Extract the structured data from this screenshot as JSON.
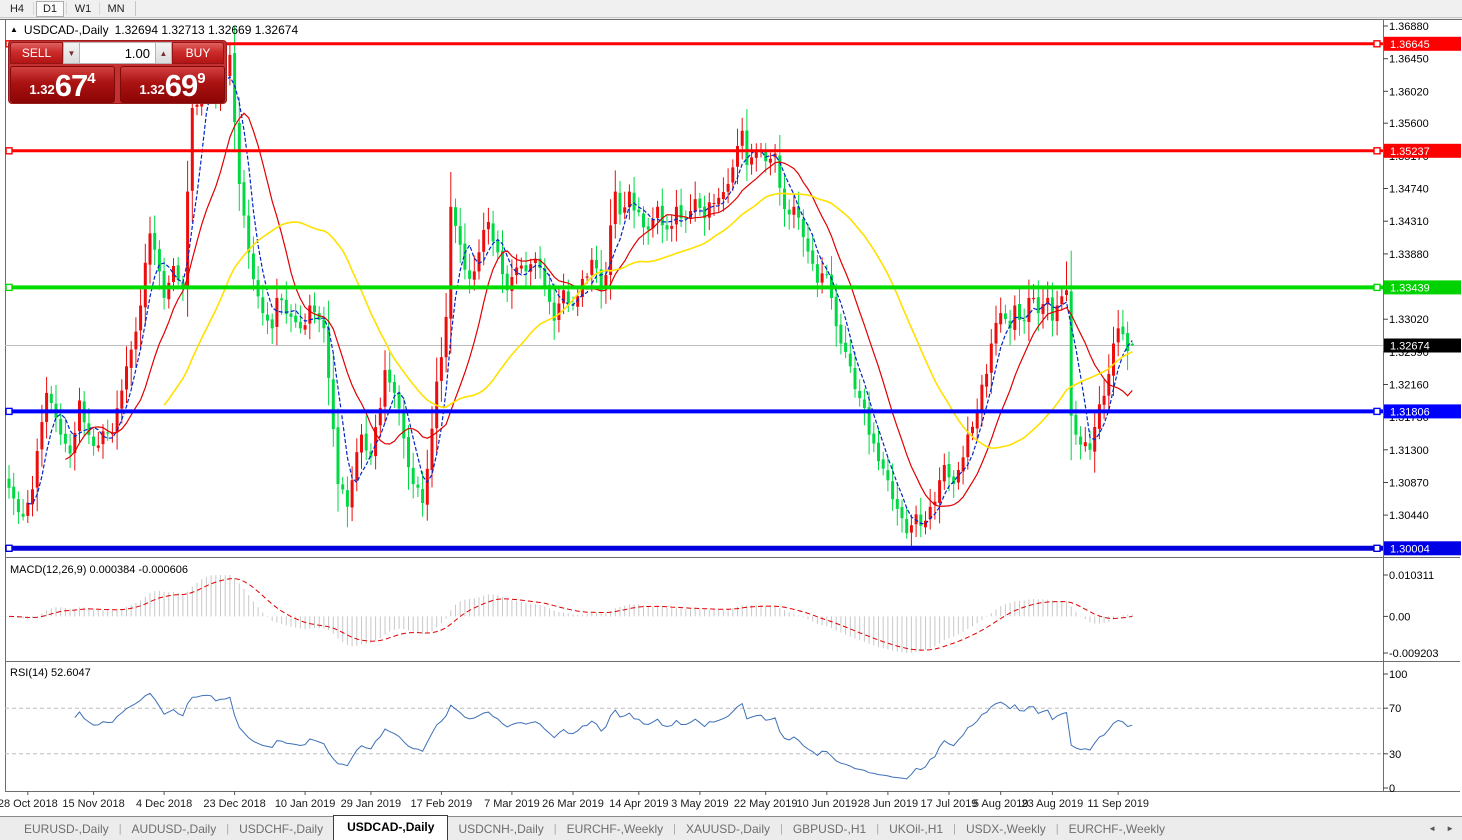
{
  "toolbar": {
    "timeframes": [
      "H4",
      "D1",
      "W1",
      "MN"
    ],
    "active": "D1"
  },
  "chart": {
    "symbol_period": "USDCAD-,Daily",
    "ohlc": "1.32694 1.32713 1.32669 1.32674"
  },
  "icons": {
    "collapse": "▲",
    "volume_down": "▼",
    "volume_up": "▲",
    "tab_scroll_left": "◄",
    "tab_scroll_right": "►"
  },
  "trade_panel": {
    "sell_label": "SELL",
    "buy_label": "BUY",
    "volume": "1.00",
    "sell_price": {
      "prefix": "1.32",
      "big": "67",
      "sup": "4"
    },
    "buy_price": {
      "prefix": "1.32",
      "big": "69",
      "sup": "9"
    }
  },
  "panes": {
    "macd_label": "MACD(12,26,9) 0.000384 -0.000606",
    "rsi_label": "RSI(14) 52.6047"
  },
  "tabs": {
    "active_index": 3,
    "items": [
      "EURUSD-,Daily",
      "AUDUSD-,Daily",
      "USDCHF-,Daily",
      "USDCAD-,Daily",
      "USDCNH-,Daily",
      "EURCHF-,Weekly",
      "XAUUSD-,Daily",
      "GBPUSD-,H1",
      "UKOil-,H1",
      "USDX-,Weekly",
      "EURCHF-,Weekly"
    ]
  },
  "chart_data": {
    "type": "candlestick",
    "symbol": "USDCAD-",
    "period": "Daily",
    "bar_count": 240,
    "visible_price_range": {
      "top": 1.36959,
      "bottom": 1.29889
    },
    "close_waypoints": [
      [
        0,
        1.308
      ],
      [
        2,
        1.3048
      ],
      [
        3,
        1.3042
      ],
      [
        5,
        1.3078
      ],
      [
        8,
        1.3205
      ],
      [
        11,
        1.315
      ],
      [
        13,
        1.3125
      ],
      [
        15,
        1.3195
      ],
      [
        18,
        1.3135
      ],
      [
        22,
        1.3152
      ],
      [
        25,
        1.324
      ],
      [
        28,
        1.332
      ],
      [
        30,
        1.3415
      ],
      [
        33,
        1.333
      ],
      [
        35,
        1.3372
      ],
      [
        37,
        1.3345
      ],
      [
        39,
        1.358
      ],
      [
        42,
        1.362
      ],
      [
        44,
        1.3595
      ],
      [
        47,
        1.365
      ],
      [
        49,
        1.348
      ],
      [
        51,
        1.339
      ],
      [
        54,
        1.331
      ],
      [
        56,
        1.329
      ],
      [
        57,
        1.333
      ],
      [
        60,
        1.3305
      ],
      [
        62,
        1.329
      ],
      [
        64,
        1.332
      ],
      [
        67,
        1.329
      ],
      [
        70,
        1.3085
      ],
      [
        72,
        1.3055
      ],
      [
        73,
        1.309
      ],
      [
        75,
        1.315
      ],
      [
        77,
        1.312
      ],
      [
        79,
        1.3185
      ],
      [
        80,
        1.3235
      ],
      [
        82,
        1.3205
      ],
      [
        84,
        1.3145
      ],
      [
        86,
        1.3085
      ],
      [
        88,
        1.306
      ],
      [
        89,
        1.3105
      ],
      [
        91,
        1.322
      ],
      [
        93,
        1.3305
      ],
      [
        94,
        1.345
      ],
      [
        96,
        1.34
      ],
      [
        98,
        1.3355
      ],
      [
        100,
        1.339
      ],
      [
        102,
        1.343
      ],
      [
        104,
        1.339
      ],
      [
        106,
        1.334
      ],
      [
        108,
        1.337
      ],
      [
        110,
        1.3365
      ],
      [
        112,
        1.338
      ],
      [
        114,
        1.3345
      ],
      [
        116,
        1.33
      ],
      [
        118,
        1.334
      ],
      [
        120,
        1.332
      ],
      [
        122,
        1.3355
      ],
      [
        124,
        1.338
      ],
      [
        126,
        1.334
      ],
      [
        127,
        1.336
      ],
      [
        129,
        1.347
      ],
      [
        130,
        1.344
      ],
      [
        132,
        1.347
      ],
      [
        133,
        1.3445
      ],
      [
        136,
        1.342
      ],
      [
        138,
        1.345
      ],
      [
        140,
        1.342
      ],
      [
        142,
        1.345
      ],
      [
        144,
        1.3435
      ],
      [
        146,
        1.346
      ],
      [
        148,
        1.3435
      ],
      [
        150,
        1.3455
      ],
      [
        153,
        1.348
      ],
      [
        155,
        1.353
      ],
      [
        156,
        1.355
      ],
      [
        157,
        1.3505
      ],
      [
        158,
        1.3515
      ],
      [
        160,
        1.3525
      ],
      [
        161,
        1.351
      ],
      [
        163,
        1.352
      ],
      [
        164,
        1.3475
      ],
      [
        166,
        1.344
      ],
      [
        167,
        1.345
      ],
      [
        169,
        1.341
      ],
      [
        171,
        1.3375
      ],
      [
        172,
        1.335
      ],
      [
        174,
        1.336
      ],
      [
        175,
        1.333
      ],
      [
        177,
        1.327
      ],
      [
        179,
        1.324
      ],
      [
        180,
        1.321
      ],
      [
        182,
        1.3185
      ],
      [
        183,
        1.315
      ],
      [
        185,
        1.3115
      ],
      [
        187,
        1.309
      ],
      [
        188,
        1.3065
      ],
      [
        190,
        1.304
      ],
      [
        191,
        1.302
      ],
      [
        193,
        1.3045
      ],
      [
        194,
        1.303
      ],
      [
        196,
        1.3055
      ],
      [
        198,
        1.309
      ],
      [
        199,
        1.311
      ],
      [
        201,
        1.3085
      ],
      [
        203,
        1.312
      ],
      [
        204,
        1.315
      ],
      [
        206,
        1.318
      ],
      [
        208,
        1.323
      ],
      [
        209,
        1.327
      ],
      [
        211,
        1.331
      ],
      [
        213,
        1.329
      ],
      [
        214,
        1.332
      ],
      [
        216,
        1.33
      ],
      [
        217,
        1.333
      ],
      [
        219,
        1.331
      ],
      [
        221,
        1.333
      ],
      [
        222,
        1.33
      ],
      [
        223,
        1.332
      ],
      [
        225,
        1.334
      ],
      [
        226,
        1.3175
      ],
      [
        227,
        1.315
      ],
      [
        229,
        1.314
      ],
      [
        230,
        1.313
      ],
      [
        231,
        1.316
      ],
      [
        232,
        1.319
      ],
      [
        234,
        1.323
      ],
      [
        235,
        1.327
      ],
      [
        236,
        1.329
      ],
      [
        238,
        1.326
      ],
      [
        239,
        1.32674
      ]
    ],
    "bar_overrides": {
      "3": {
        "l": 1.3037
      },
      "47": {
        "h": 1.36645
      },
      "72": {
        "l": 1.3028
      },
      "88": {
        "l": 1.3042
      },
      "191": {
        "l": 1.3013
      },
      "225": {
        "h": 1.3378
      },
      "239": {
        "o": 1.32694,
        "h": 1.32713,
        "l": 1.32669,
        "c": 1.32674
      }
    },
    "candle_colors": {
      "up": "#EC0D0D",
      "down": "#00D944"
    },
    "moving_averages": [
      {
        "period": 5,
        "color": "#0026C8",
        "dash": "4 2",
        "width": 1.2
      },
      {
        "period": 13,
        "color": "#E00000",
        "dash": "",
        "width": 1.2
      },
      {
        "period": 34,
        "color": "#FFE100",
        "dash": "",
        "width": 1.6
      }
    ],
    "horizontal_lines": [
      {
        "price": 1.36645,
        "color": "#FF0000",
        "width": 3
      },
      {
        "price": 1.35237,
        "color": "#FF0000",
        "width": 3
      },
      {
        "price": 1.33439,
        "color": "#00DC00",
        "width": 4
      },
      {
        "price": 1.31806,
        "color": "#0000FF",
        "width": 4
      },
      {
        "price": 1.30004,
        "color": "#0000DC",
        "width": 5
      }
    ],
    "current_price_line": {
      "value": 1.32674,
      "label": "1.32674",
      "badge_color": "#000000",
      "line_color": "#BDBDBD"
    },
    "price_axis": {
      "ticks": [
        "1.36880",
        "1.36450",
        "1.36020",
        "1.35600",
        "1.35170",
        "1.34740",
        "1.34310",
        "1.33880",
        "1.33020",
        "1.32590",
        "1.32160",
        "1.31730",
        "1.31300",
        "1.30870",
        "1.30440"
      ],
      "badges": [
        {
          "label": "1.36645",
          "color": "#FF0000"
        },
        {
          "label": "1.35237",
          "color": "#FF0000"
        },
        {
          "label": "1.33439",
          "color": "#00D200"
        },
        {
          "label": "1.32674",
          "color": "#000000"
        },
        {
          "label": "1.31806",
          "color": "#0000FF"
        },
        {
          "label": "1.30004",
          "color": "#0000E6"
        }
      ]
    },
    "date_axis": [
      {
        "bar": 4,
        "label": "28 Oct 2018"
      },
      {
        "bar": 18,
        "label": "15 Nov 2018"
      },
      {
        "bar": 33,
        "label": "4 Dec 2018"
      },
      {
        "bar": 48,
        "label": "23 Dec 2018"
      },
      {
        "bar": 63,
        "label": "10 Jan 2019"
      },
      {
        "bar": 77,
        "label": "29 Jan 2019"
      },
      {
        "bar": 92,
        "label": "17 Feb 2019"
      },
      {
        "bar": 107,
        "label": "7 Mar 2019"
      },
      {
        "bar": 120,
        "label": "26 Mar 2019"
      },
      {
        "bar": 134,
        "label": "14 Apr 2019"
      },
      {
        "bar": 147,
        "label": "3 May 2019"
      },
      {
        "bar": 161,
        "label": "22 May 2019"
      },
      {
        "bar": 174,
        "label": "10 Jun 2019"
      },
      {
        "bar": 187,
        "label": "28 Jun 2019"
      },
      {
        "bar": 200,
        "label": "17 Jul 2019"
      },
      {
        "bar": 211,
        "label": "5 Aug 2019"
      },
      {
        "bar": 222,
        "label": "23 Aug 2019"
      },
      {
        "bar": 236,
        "label": "11 Sep 2019"
      }
    ],
    "macd": {
      "params": "12,26,9",
      "value": "0.000384",
      "signal_value": "-0.000606",
      "axis": {
        "max": "0.010311",
        "zero": "0.00",
        "min": "-0.009203"
      },
      "hist_color": "#C8C8C8",
      "signal_color": "#E00000"
    },
    "rsi": {
      "period": 14,
      "value": "52.6047",
      "color": "#3E70B8",
      "levels": [
        {
          "v": 100,
          "label": "100",
          "dashed": false
        },
        {
          "v": 70,
          "label": "70",
          "dashed": true
        },
        {
          "v": 30,
          "label": "30",
          "dashed": true
        },
        {
          "v": 0,
          "label": "0",
          "dashed": false
        }
      ]
    }
  }
}
